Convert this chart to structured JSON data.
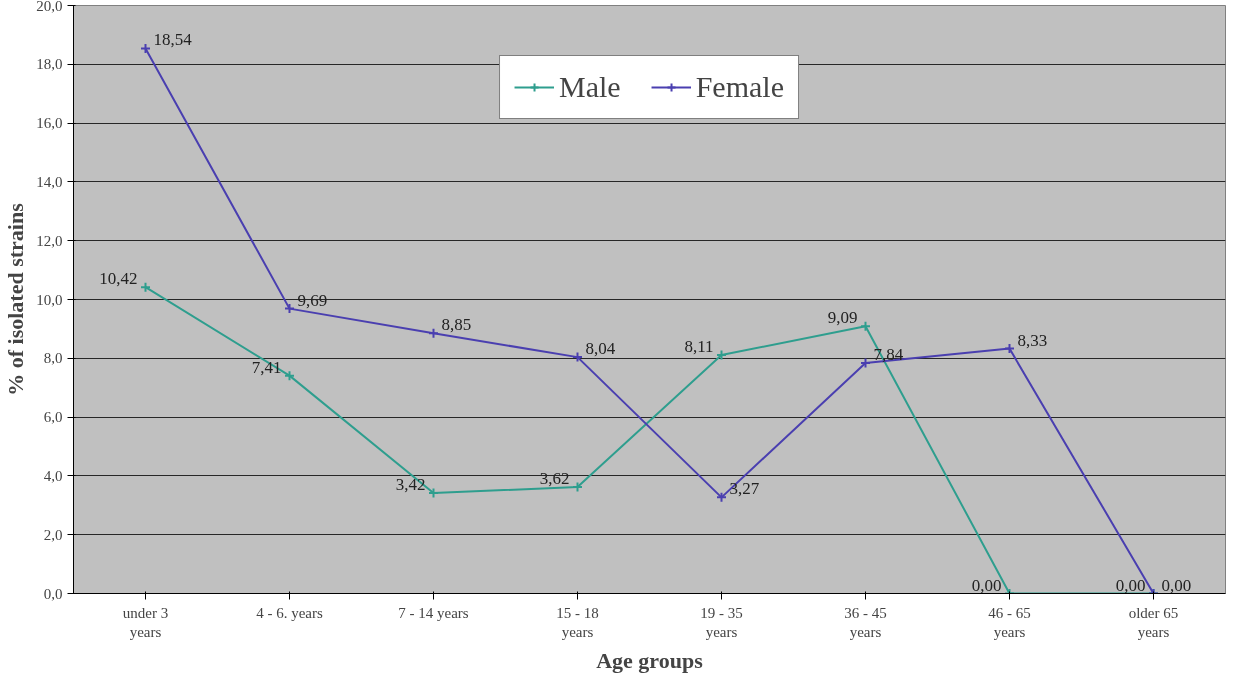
{
  "chart_data": {
    "type": "line",
    "xlabel": "Age groups",
    "ylabel": "% of isolated strains",
    "categories": [
      "under 3\nyears",
      "4 - 6. years",
      "7 - 14 years",
      "15 - 18\nyears",
      "19 - 35\nyears",
      "36 - 45\nyears",
      "46 - 65\nyears",
      "older 65\nyears"
    ],
    "series": [
      {
        "name": "Male",
        "color": "#2e9e8e",
        "values": [
          10.42,
          7.41,
          3.42,
          3.62,
          8.11,
          9.09,
          0.0,
          0.0
        ],
        "value_labels": [
          "10,42",
          "7,41",
          "3,42",
          "3,62",
          "8,11",
          "9,09",
          "0,00",
          "0,00"
        ]
      },
      {
        "name": "Female",
        "color": "#4a3fb0",
        "values": [
          18.54,
          9.69,
          8.85,
          8.04,
          3.27,
          7.84,
          8.33,
          0.0
        ],
        "value_labels": [
          "18,54",
          "9,69",
          "8,85",
          "8,04",
          "3,27",
          "7,84",
          "8,33",
          "0,00"
        ]
      }
    ],
    "ylim": [
      0,
      20
    ],
    "yticks": [
      {
        "value": 0,
        "label": "0,0"
      },
      {
        "value": 2,
        "label": "2,0"
      },
      {
        "value": 4,
        "label": "4,0"
      },
      {
        "value": 6,
        "label": "6,0"
      },
      {
        "value": 8,
        "label": "8,0"
      },
      {
        "value": 10,
        "label": "10,0"
      },
      {
        "value": 12,
        "label": "12,0"
      },
      {
        "value": 14,
        "label": "14,0"
      },
      {
        "value": 16,
        "label": "16,0"
      },
      {
        "value": 18,
        "label": "18,0"
      },
      {
        "value": 20,
        "label": "20,0"
      }
    ],
    "grid": "y",
    "legend": "top",
    "marker": "cross",
    "line_style": "solid"
  }
}
